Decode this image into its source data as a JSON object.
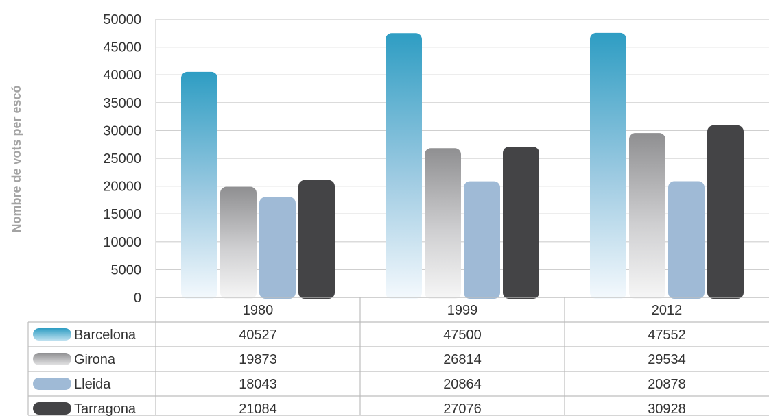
{
  "chart_data": {
    "type": "bar",
    "ylabel": "Nombre de vots per escó",
    "categories": [
      "1980",
      "1999",
      "2012"
    ],
    "ylim": [
      0,
      50000
    ],
    "yticks": [
      "0",
      "5000",
      "10000",
      "15000",
      "20000",
      "25000",
      "30000",
      "35000",
      "40000",
      "45000",
      "50000"
    ],
    "grid": true,
    "legend": "data table below chart",
    "series": [
      {
        "name": "Barcelona",
        "values": [
          40527,
          47500,
          47552
        ],
        "color": "#2e9dc3"
      },
      {
        "name": "Girona",
        "values": [
          19873,
          26814,
          29534
        ],
        "color": "#8f8f91"
      },
      {
        "name": "Lleida",
        "values": [
          18043,
          20864,
          20878
        ],
        "color": "#9fbad6"
      },
      {
        "name": "Tarragona",
        "values": [
          21084,
          27076,
          30928
        ],
        "color": "#444446"
      }
    ],
    "table_values": [
      [
        "40527",
        "47500",
        "47552"
      ],
      [
        "19873",
        "26814",
        "29534"
      ],
      [
        "18043",
        "20864",
        "20878"
      ],
      [
        "21084",
        "27076",
        "30928"
      ]
    ]
  }
}
